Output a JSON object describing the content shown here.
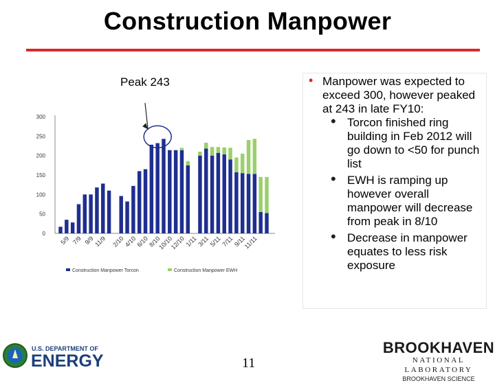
{
  "title": "Construction Manpower",
  "peak_label": "Peak  243",
  "bullets": {
    "main": "Manpower was expected to exceed 300, however peaked at 243 in late FY10:",
    "sub": [
      "Torcon finished ring building in Feb 2012 will go down to <50 for punch list",
      "EWH is ramping up however overall manpower will decrease from peak in 8/10",
      "Decrease in manpower equates to less risk exposure"
    ]
  },
  "page_number": "11",
  "logos": {
    "doe_top": "U.S. DEPARTMENT OF",
    "doe_main": "ENERGY",
    "bnl_main": "BROOKHAVEN",
    "bnl_sub": "NATIONAL LABORATORY",
    "bnl_sci": "BROOKHAVEN SCIENCE"
  },
  "colors": {
    "torcon": "#1f2f8f",
    "ewh": "#9bcf6b",
    "title_rule": "#d7282f",
    "callout": "#1f2f8f"
  },
  "chart_data": {
    "type": "bar",
    "stacked": true,
    "ylim": [
      0,
      300
    ],
    "yticks": [
      0,
      50,
      100,
      150,
      200,
      250,
      300
    ],
    "x_tick_labels": [
      "5/9",
      "7/9",
      "9/9",
      "11/9",
      "2/10",
      "4/10",
      "6/10",
      "8/10",
      "10/10",
      "12/10",
      "1/11",
      "3/11",
      "5/11",
      "7/11",
      "9/11",
      "11/11"
    ],
    "legend": [
      "Construction Manpower Torcon",
      "Construction Manpower EWH"
    ],
    "legend_position": "bottom",
    "series": [
      {
        "name": "Construction Manpower Torcon",
        "values": [
          17,
          35,
          28,
          75,
          100,
          100,
          118,
          128,
          110,
          null,
          96,
          82,
          122,
          160,
          165,
          228,
          232,
          243,
          214,
          214,
          214,
          175,
          null,
          200,
          218,
          200,
          207,
          203,
          190,
          157,
          155,
          153,
          153,
          55,
          52
        ]
      },
      {
        "name": "Construction Manpower EWH",
        "values": [
          0,
          0,
          0,
          0,
          0,
          0,
          0,
          0,
          0,
          null,
          0,
          0,
          0,
          0,
          0,
          0,
          0,
          0,
          0,
          0,
          6,
          11,
          null,
          10,
          15,
          22,
          15,
          18,
          30,
          38,
          50,
          87,
          90,
          90,
          93
        ]
      }
    ]
  }
}
